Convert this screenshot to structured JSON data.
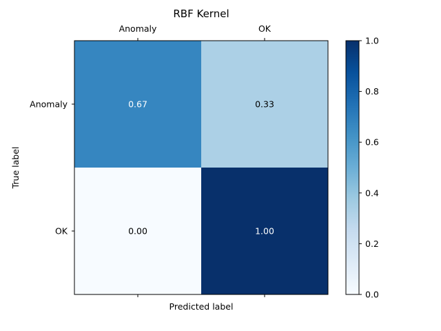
{
  "chart_data": {
    "type": "heatmap",
    "title": "RBF Kernel",
    "xlabel": "Predicted label",
    "ylabel": "True label",
    "x_categories": [
      "Anomaly",
      "OK"
    ],
    "y_categories": [
      "Anomaly",
      "OK"
    ],
    "values": [
      [
        0.67,
        0.33
      ],
      [
        0.0,
        1.0
      ]
    ],
    "cell_labels": [
      [
        "0.67",
        "0.33"
      ],
      [
        "0.00",
        "1.00"
      ]
    ],
    "colormap": "Blues",
    "colorbar": {
      "range": [
        0.0,
        1.0
      ],
      "ticks": [
        0.0,
        0.2,
        0.4,
        0.6,
        0.8,
        1.0
      ],
      "tick_labels": [
        "0.0",
        "0.2",
        "0.4",
        "0.6",
        "0.8",
        "1.0"
      ]
    },
    "grid": false
  }
}
